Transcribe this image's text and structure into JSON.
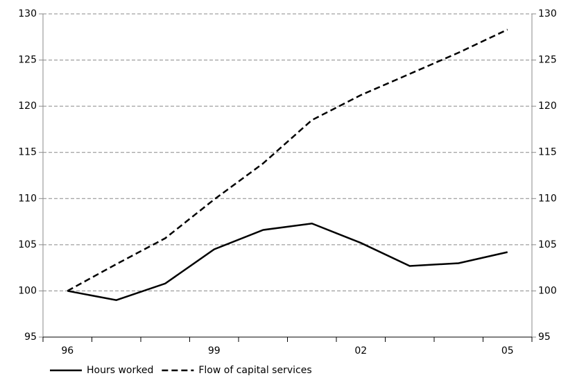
{
  "chart_data": {
    "type": "line",
    "categories": [
      "96",
      null,
      null,
      "99",
      null,
      null,
      "02",
      null,
      null,
      "05"
    ],
    "series": [
      {
        "name": "Hours worked",
        "color": "#000000",
        "dash": "solid",
        "values": [
          100,
          99.0,
          100.8,
          104.5,
          106.6,
          107.3,
          105.2,
          102.7,
          103.0,
          104.2
        ]
      },
      {
        "name": "Flow of capital services",
        "color": "#000000",
        "dash": "dashed",
        "values": [
          100,
          102.9,
          105.7,
          109.9,
          113.8,
          118.5,
          121.2,
          123.5,
          125.8,
          128.3
        ]
      }
    ],
    "ylim": [
      95,
      130
    ],
    "yticks": [
      95,
      100,
      105,
      110,
      115,
      120,
      125,
      130
    ],
    "y2lim": [
      95,
      130
    ],
    "y2ticks": [
      95,
      100,
      105,
      110,
      115,
      120,
      125,
      130
    ],
    "grid": true,
    "legend": "bottom"
  }
}
